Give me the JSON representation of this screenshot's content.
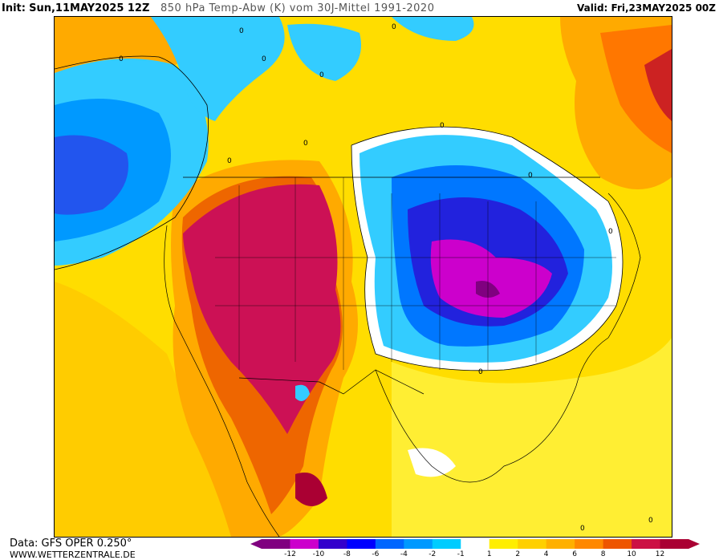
{
  "header": {
    "init_label": "Init:",
    "init_value": "Sun,11MAY2025 12Z",
    "title": "850 hPa Temp-Abw (K) vom 30J-Mittel 1991-2020",
    "valid": "Valid: Fri,23MAY2025 00Z"
  },
  "footer": {
    "data_source": "Data: GFS OPER 0.250°",
    "website": "WWW.WETTERZENTRALE.DE"
  },
  "contour_labels": [
    "0",
    "0",
    "0",
    "0",
    "0",
    "0",
    "0",
    "0",
    "0",
    "0",
    "0",
    "0",
    "0"
  ],
  "legend": {
    "ticks": [
      "-12",
      "-10",
      "-8",
      "-6",
      "-4",
      "-2",
      "-1",
      "1",
      "2",
      "4",
      "6",
      "8",
      "10",
      "12"
    ],
    "colors": [
      "#800080",
      "#cc00cc",
      "#3300cc",
      "#0000ff",
      "#0066ff",
      "#0099ff",
      "#00ccff",
      "#ffffff",
      "#ffee00",
      "#ffd000",
      "#ffb000",
      "#ff8800",
      "#ee5500",
      "#cc1144",
      "#aa0033"
    ]
  },
  "colors": {
    "warm_base": "#ffdd00",
    "warm_mid": "#ffaa00",
    "hot": "#ee5500",
    "very_hot": "#cc1155",
    "cold_light": "#33ccff",
    "cold_mid": "#0077ff",
    "cold_deep": "#2222dd",
    "cold_extreme": "#cc00cc"
  }
}
